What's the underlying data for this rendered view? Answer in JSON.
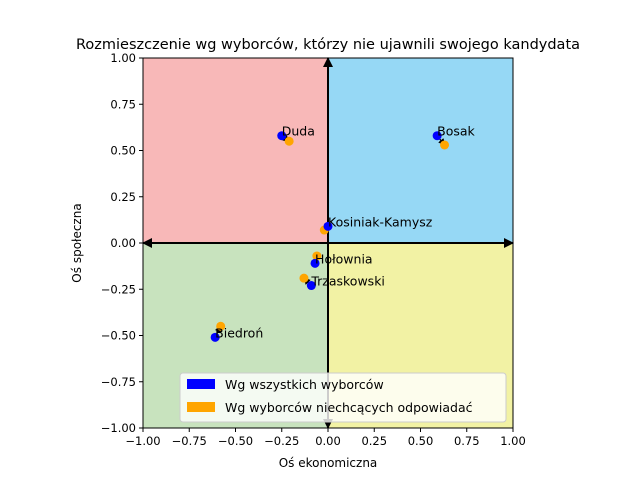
{
  "chart_data": {
    "type": "scatter",
    "title": "Rozmieszczenie wg wyborców, którzy nie ujawnili swojego kandydata",
    "xlabel": "Oś ekonomiczna",
    "ylabel": "Oś społeczna",
    "xlim": [
      -1.0,
      1.0
    ],
    "ylim": [
      -1.0,
      1.0
    ],
    "xticks": [
      "−1.00",
      "−0.75",
      "−0.50",
      "−0.25",
      "0.00",
      "0.25",
      "0.50",
      "0.75",
      "1.00"
    ],
    "yticks": [
      "−1.00",
      "−0.75",
      "−0.50",
      "−0.25",
      "0.00",
      "0.25",
      "0.50",
      "0.75",
      "1.00"
    ],
    "grid": false,
    "quadrants": [
      {
        "x": [
          -1,
          0
        ],
        "y": [
          0,
          1
        ],
        "color": "#f8b8b8"
      },
      {
        "x": [
          0,
          1
        ],
        "y": [
          0,
          1
        ],
        "color": "#96d8f5"
      },
      {
        "x": [
          -1,
          0
        ],
        "y": [
          -1,
          0
        ],
        "color": "#c8e3be"
      },
      {
        "x": [
          0,
          1
        ],
        "y": [
          -1,
          0
        ],
        "color": "#f2f2a4"
      }
    ],
    "series": [
      {
        "name": "Wg wszystkich wyborców",
        "color": "#0000ff"
      },
      {
        "name": "Wg wyborców niechcących odpowiadać",
        "color": "#ffa500"
      }
    ],
    "candidates": [
      {
        "label": "Duda",
        "all": [
          -0.25,
          0.58
        ],
        "refused": [
          -0.21,
          0.55
        ]
      },
      {
        "label": "Bosak",
        "all": [
          0.59,
          0.58
        ],
        "refused": [
          0.63,
          0.53
        ]
      },
      {
        "label": "Kosiniak-Kamysz",
        "all": [
          0.0,
          0.09
        ],
        "refused": [
          -0.02,
          0.07
        ]
      },
      {
        "label": "Hołownia",
        "all": [
          -0.07,
          -0.11
        ],
        "refused": [
          -0.06,
          -0.07
        ]
      },
      {
        "label": "Trzaskowski",
        "all": [
          -0.09,
          -0.23
        ],
        "refused": [
          -0.13,
          -0.19
        ]
      },
      {
        "label": "Biedroń",
        "all": [
          -0.61,
          -0.51
        ],
        "refused": [
          -0.58,
          -0.45
        ]
      }
    ],
    "legend_position": "lower-right"
  }
}
